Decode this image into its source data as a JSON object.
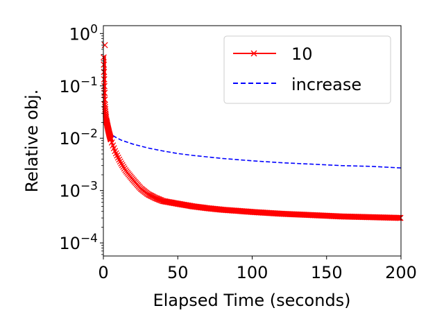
{
  "chart_data": {
    "type": "line",
    "xlabel": "Elapsed Time (seconds)",
    "ylabel": "Relative obj.",
    "xlim": [
      0,
      200
    ],
    "ylim_log10": [
      -4.25,
      0.15
    ],
    "y_scale": "log",
    "x_ticks": [
      {
        "value": 0,
        "label": "0"
      },
      {
        "value": 50,
        "label": "50"
      },
      {
        "value": 100,
        "label": "100"
      },
      {
        "value": 150,
        "label": "150"
      },
      {
        "value": 200,
        "label": "200"
      }
    ],
    "y_ticks": [
      {
        "exp": 0,
        "base": "10",
        "sup": "0"
      },
      {
        "exp": -1,
        "base": "10",
        "sup": "−1"
      },
      {
        "exp": -2,
        "base": "10",
        "sup": "−2"
      },
      {
        "exp": -3,
        "base": "10",
        "sup": "−3"
      },
      {
        "exp": -4,
        "base": "10",
        "sup": "−4"
      }
    ],
    "legend_position": "top-right",
    "series": [
      {
        "name": "10",
        "color": "#ff0000",
        "style": "solid-x-markers",
        "x": [
          0.2,
          0.6,
          1,
          1.5,
          2,
          3,
          4,
          5,
          6,
          8,
          10,
          12,
          15,
          20,
          25,
          30,
          35,
          40,
          50,
          60,
          70,
          80,
          90,
          100,
          120,
          140,
          160,
          180,
          200
        ],
        "y": [
          0.35,
          0.12,
          0.045,
          0.03,
          0.022,
          0.016,
          0.012,
          0.0095,
          0.0078,
          0.0055,
          0.0042,
          0.0033,
          0.0024,
          0.0016,
          0.0011,
          0.00085,
          0.00072,
          0.00063,
          0.00056,
          0.0005,
          0.00046,
          0.00043,
          0.00041,
          0.00039,
          0.00036,
          0.00034,
          0.00032,
          0.00031,
          0.0003
        ]
      },
      {
        "name": "increase",
        "color": "#0000ff",
        "style": "dashed",
        "x": [
          0.2,
          1,
          2,
          3,
          5,
          8,
          12,
          20,
          30,
          40,
          50,
          60,
          80,
          100,
          120,
          140,
          160,
          180,
          200
        ],
        "y": [
          0.03,
          0.022,
          0.018,
          0.015,
          0.012,
          0.0105,
          0.0092,
          0.0077,
          0.0065,
          0.0057,
          0.0051,
          0.0047,
          0.0041,
          0.0037,
          0.0034,
          0.0032,
          0.003,
          0.0029,
          0.0027
        ]
      }
    ],
    "markers": [
      {
        "series": "10",
        "x": 1,
        "y": 0.6
      }
    ]
  }
}
